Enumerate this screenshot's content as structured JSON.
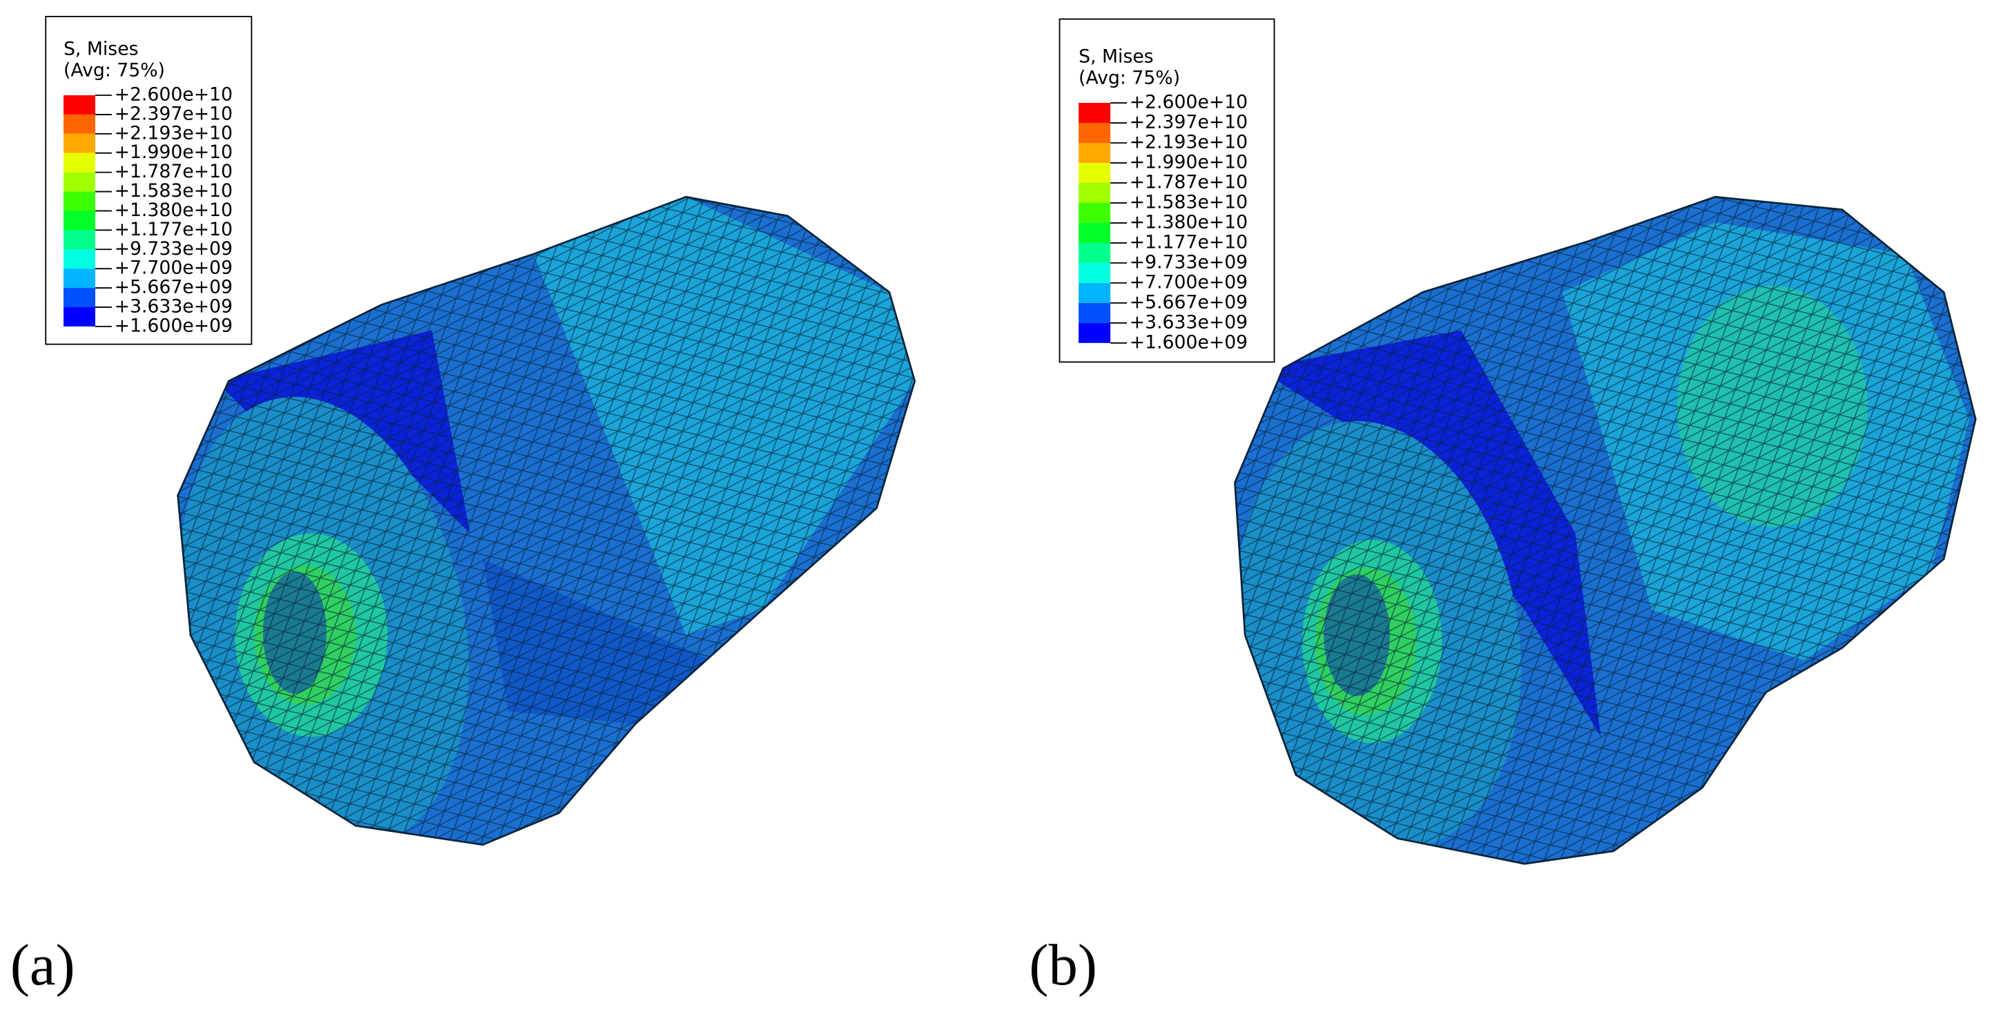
{
  "colors": [
    "#ff0000",
    "#ff6600",
    "#ffaa00",
    "#e6ff00",
    "#a0ff00",
    "#3cff00",
    "#00ff28",
    "#00ff8c",
    "#00ffe0",
    "#00b4ff",
    "#0050ff",
    "#0000ff"
  ],
  "panels": [
    {
      "label": "(a)",
      "legend": {
        "title": "S, Mises",
        "subtitle": "(Avg: 75%)",
        "labels": [
          "+2.600e+10",
          "+2.397e+10",
          "+2.193e+10",
          "+1.990e+10",
          "+1.787e+10",
          "+1.583e+10",
          "+1.380e+10",
          "+1.177e+10",
          "+9.733e+09",
          "+7.700e+09",
          "+5.667e+09",
          "+3.633e+09",
          "+1.600e+09"
        ]
      }
    },
    {
      "label": "(b)",
      "legend": {
        "title": "S, Mises",
        "subtitle": "(Avg: 75%)",
        "labels": [
          "+2.600e+10",
          "+2.397e+10",
          "+2.193e+10",
          "+1.990e+10",
          "+1.787e+10",
          "+1.583e+10",
          "+1.380e+10",
          "+1.177e+10",
          "+9.733e+09",
          "+7.700e+09",
          "+5.667e+09",
          "+3.633e+09",
          "+1.600e+09"
        ]
      }
    }
  ]
}
